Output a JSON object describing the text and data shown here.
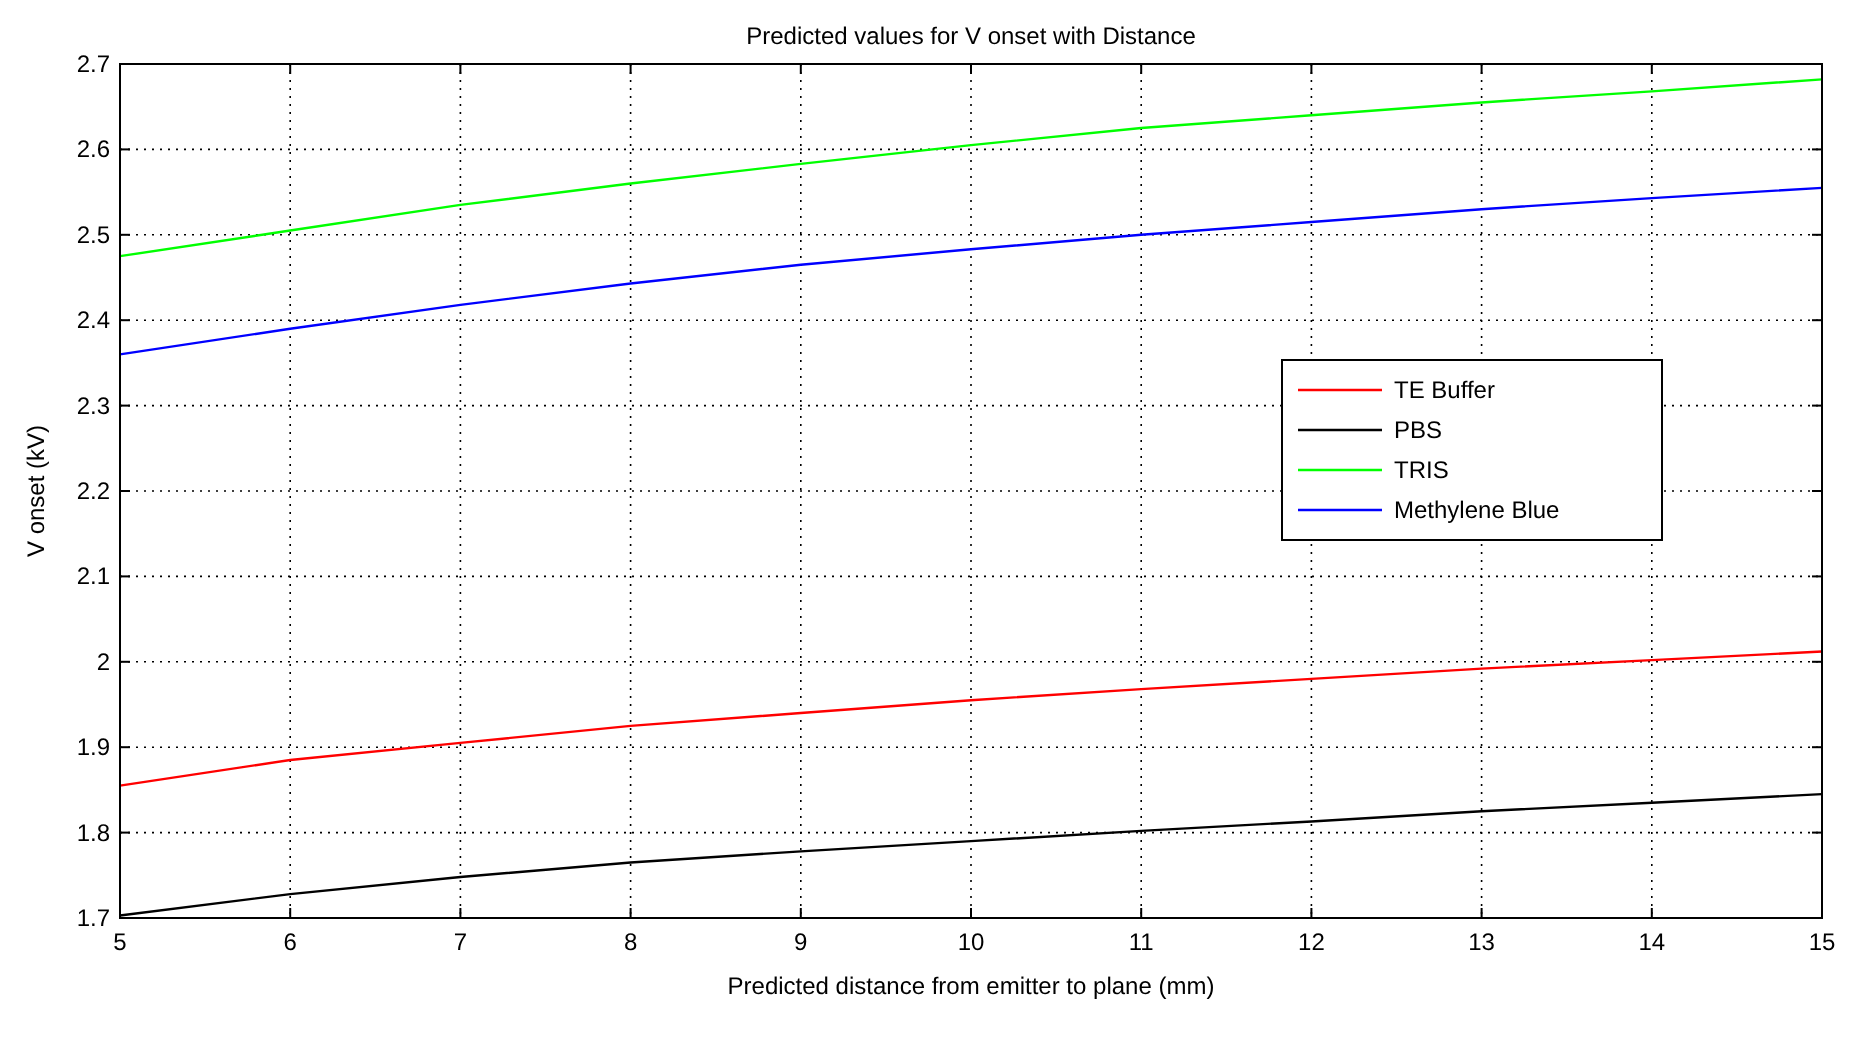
{
  "chart_data": {
    "type": "line",
    "title": "Predicted values for V onset with Distance",
    "xlabel": "Predicted distance from emitter to plane (mm)",
    "ylabel": "V onset (kV)",
    "x": [
      5,
      6,
      7,
      8,
      9,
      10,
      11,
      12,
      13,
      14,
      15
    ],
    "series": [
      {
        "name": "TE Buffer",
        "color": "#ff0000",
        "values": [
          1.855,
          1.885,
          1.905,
          1.925,
          1.94,
          1.955,
          1.968,
          1.98,
          1.992,
          2.002,
          2.012
        ]
      },
      {
        "name": "PBS",
        "color": "#000000",
        "values": [
          1.703,
          1.728,
          1.748,
          1.765,
          1.778,
          1.79,
          1.802,
          1.813,
          1.825,
          1.835,
          1.845
        ]
      },
      {
        "name": "TRIS",
        "color": "#00ff00",
        "values": [
          2.475,
          2.505,
          2.535,
          2.56,
          2.583,
          2.605,
          2.625,
          2.64,
          2.655,
          2.668,
          2.682
        ]
      },
      {
        "name": "Methylene Blue",
        "color": "#0000ff",
        "values": [
          2.36,
          2.39,
          2.418,
          2.443,
          2.465,
          2.483,
          2.5,
          2.515,
          2.53,
          2.543,
          2.555
        ]
      }
    ],
    "xlim": [
      5,
      15
    ],
    "xticks": [
      5,
      6,
      7,
      8,
      9,
      10,
      11,
      12,
      13,
      14,
      15
    ],
    "ylim": [
      1.7,
      2.7
    ],
    "yticks": [
      1.7,
      1.8,
      1.9,
      2,
      2.1,
      2.2,
      2.3,
      2.4,
      2.5,
      2.6,
      2.7
    ],
    "grid": true,
    "legend": "right",
    "marker": "none",
    "line_style": "solid"
  }
}
